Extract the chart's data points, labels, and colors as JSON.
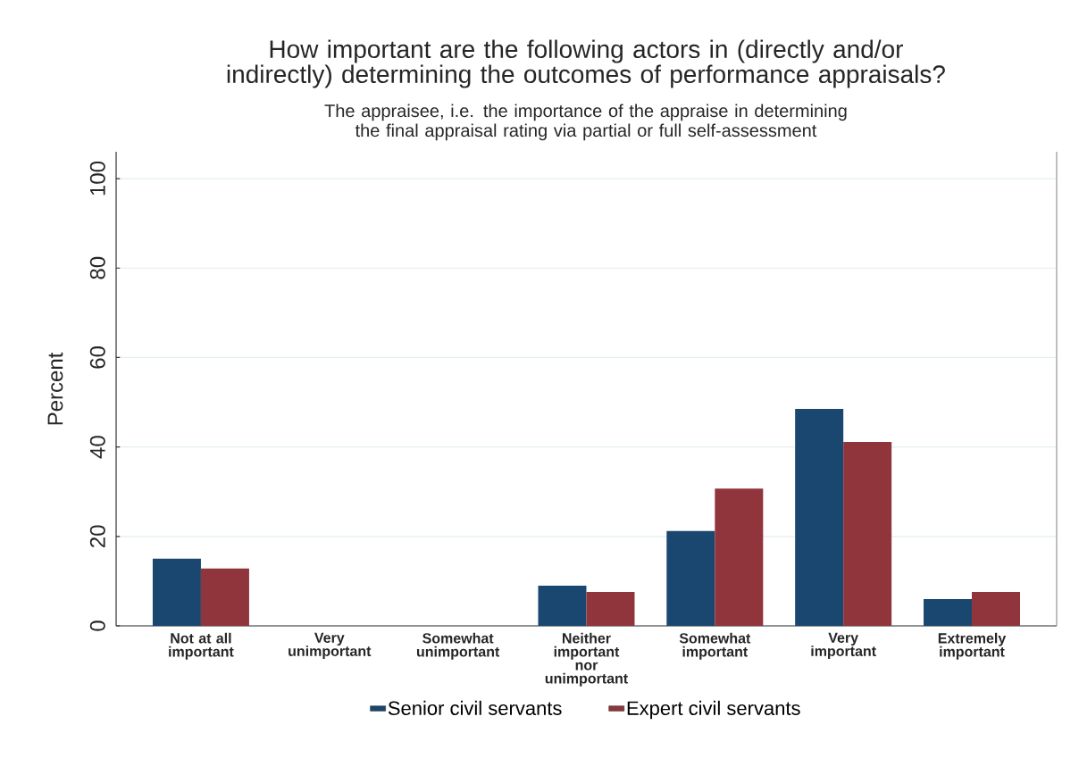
{
  "chart_data": {
    "type": "bar",
    "title": "How important are the following actors in (directly and/or indirectly) determining the outcomes of performance appraisals?",
    "subtitle": "The appraisee, i.e. the importance of the appraise in determining the final appraisal rating via partial or full self-assessment",
    "ylabel": "Percent",
    "categories": [
      "Not at all important",
      "Very unimportant",
      "Somewhat unimportant",
      "Neither important nor unimportant",
      "Somewhat important",
      "Very important",
      "Extremely important"
    ],
    "series": [
      {
        "name": "Senior civil servants",
        "color": "#1a476f",
        "values": [
          15.0,
          0,
          0,
          9.0,
          21.2,
          48.5,
          6.0
        ]
      },
      {
        "name": "Expert civil servants",
        "color": "#90353b",
        "values": [
          12.8,
          0,
          0,
          7.6,
          30.7,
          41.1,
          7.6
        ]
      }
    ],
    "ylim": [
      0,
      106
    ],
    "yticks": [
      0,
      20,
      40,
      60,
      80,
      100
    ],
    "grid": "y",
    "legend": "bottom"
  }
}
